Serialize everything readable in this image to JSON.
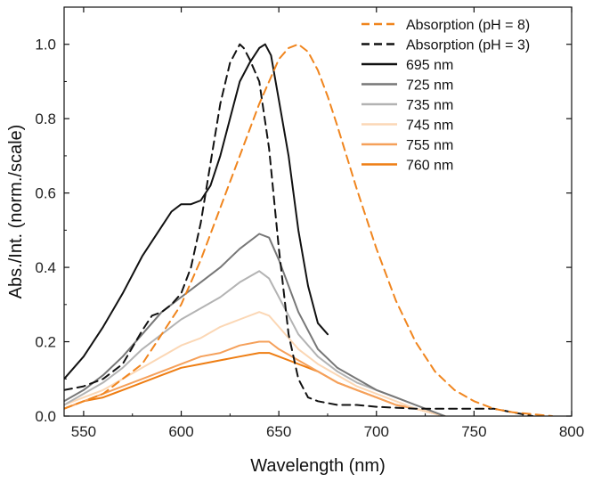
{
  "chart_data": {
    "type": "line",
    "title": "",
    "xlabel": "Wavelength (nm)",
    "ylabel": "Abs./Int. (norm./scale)",
    "xlim": [
      540,
      800
    ],
    "ylim": [
      0,
      1.1
    ],
    "x_ticks": [
      550,
      600,
      650,
      700,
      750,
      800
    ],
    "y_ticks": [
      0.0,
      0.2,
      0.4,
      0.6,
      0.8,
      1.0
    ],
    "x_tick_labels": [
      "550",
      "600",
      "650",
      "700",
      "750",
      "800"
    ],
    "y_tick_labels": [
      "0.0",
      "0.2",
      "0.4",
      "0.6",
      "0.8",
      "1.0"
    ],
    "grid": false,
    "legend_position": "top-right",
    "series": [
      {
        "name": "Absorption (pH = 8)",
        "color": "#f0851e",
        "dash": "dashed",
        "x": [
          540,
          560,
          580,
          600,
          610,
          620,
          630,
          640,
          645,
          650,
          655,
          660,
          665,
          670,
          675,
          680,
          690,
          700,
          710,
          720,
          730,
          740,
          750,
          760,
          770,
          780,
          790
        ],
        "y": [
          0.02,
          0.06,
          0.14,
          0.3,
          0.42,
          0.56,
          0.7,
          0.84,
          0.9,
          0.96,
          0.99,
          1.0,
          0.98,
          0.93,
          0.86,
          0.78,
          0.61,
          0.45,
          0.31,
          0.2,
          0.12,
          0.07,
          0.04,
          0.02,
          0.01,
          0.005,
          0.0
        ]
      },
      {
        "name": "Absorption (pH = 3)",
        "color": "#111111",
        "dash": "dashed",
        "x": [
          540,
          550,
          560,
          570,
          580,
          585,
          590,
          595,
          600,
          605,
          610,
          615,
          620,
          625,
          630,
          632,
          635,
          640,
          645,
          650,
          655,
          660,
          665,
          670,
          680,
          690,
          700,
          720,
          740,
          760,
          780
        ],
        "y": [
          0.07,
          0.08,
          0.1,
          0.14,
          0.23,
          0.27,
          0.28,
          0.3,
          0.33,
          0.4,
          0.52,
          0.68,
          0.84,
          0.95,
          1.0,
          0.99,
          0.96,
          0.9,
          0.72,
          0.45,
          0.22,
          0.1,
          0.05,
          0.04,
          0.03,
          0.03,
          0.025,
          0.02,
          0.02,
          0.02,
          0.0
        ]
      },
      {
        "name": "695 nm",
        "color": "#111111",
        "dash": "solid",
        "x": [
          540,
          550,
          560,
          570,
          580,
          590,
          595,
          600,
          605,
          610,
          615,
          620,
          625,
          630,
          635,
          640,
          643,
          646,
          650,
          655,
          660,
          665,
          670,
          675
        ],
        "y": [
          0.1,
          0.16,
          0.24,
          0.33,
          0.43,
          0.51,
          0.55,
          0.57,
          0.57,
          0.58,
          0.62,
          0.7,
          0.8,
          0.9,
          0.95,
          0.99,
          1.0,
          0.97,
          0.85,
          0.7,
          0.5,
          0.35,
          0.25,
          0.22
        ]
      },
      {
        "name": "725 nm",
        "color": "#777777",
        "dash": "solid",
        "x": [
          540,
          550,
          560,
          570,
          580,
          590,
          600,
          610,
          620,
          630,
          640,
          645,
          650,
          660,
          670,
          680,
          690,
          700,
          710,
          720,
          735
        ],
        "y": [
          0.04,
          0.07,
          0.11,
          0.16,
          0.22,
          0.28,
          0.32,
          0.36,
          0.4,
          0.45,
          0.49,
          0.48,
          0.42,
          0.28,
          0.18,
          0.13,
          0.1,
          0.07,
          0.05,
          0.03,
          0.0
        ]
      },
      {
        "name": "735 nm",
        "color": "#b3b3b3",
        "dash": "solid",
        "x": [
          540,
          550,
          560,
          570,
          580,
          590,
          600,
          610,
          620,
          630,
          640,
          645,
          650,
          660,
          670,
          680,
          690,
          700,
          710,
          720,
          735
        ],
        "y": [
          0.03,
          0.06,
          0.09,
          0.13,
          0.18,
          0.22,
          0.26,
          0.29,
          0.32,
          0.36,
          0.39,
          0.37,
          0.32,
          0.22,
          0.16,
          0.12,
          0.09,
          0.07,
          0.05,
          0.03,
          0.0
        ]
      },
      {
        "name": "745 nm",
        "color": "#fbd7b5",
        "dash": "solid",
        "x": [
          540,
          550,
          560,
          570,
          580,
          590,
          600,
          610,
          620,
          630,
          640,
          645,
          650,
          660,
          670,
          680,
          690,
          700,
          710,
          720,
          735
        ],
        "y": [
          0.03,
          0.05,
          0.07,
          0.1,
          0.13,
          0.16,
          0.19,
          0.21,
          0.24,
          0.26,
          0.28,
          0.27,
          0.24,
          0.18,
          0.14,
          0.11,
          0.08,
          0.06,
          0.04,
          0.02,
          0.0
        ]
      },
      {
        "name": "755 nm",
        "color": "#f5a05a",
        "dash": "solid",
        "x": [
          540,
          550,
          560,
          570,
          580,
          590,
          600,
          610,
          620,
          630,
          640,
          645,
          650,
          660,
          670,
          680,
          690,
          700,
          710,
          720,
          735
        ],
        "y": [
          0.02,
          0.04,
          0.06,
          0.08,
          0.1,
          0.12,
          0.14,
          0.16,
          0.17,
          0.19,
          0.2,
          0.2,
          0.18,
          0.15,
          0.12,
          0.09,
          0.07,
          0.05,
          0.03,
          0.02,
          0.0
        ]
      },
      {
        "name": "760 nm",
        "color": "#ee7d12",
        "dash": "solid",
        "x": [
          540,
          550,
          560,
          570,
          580,
          590,
          600,
          610,
          620,
          630,
          640,
          645,
          650,
          660,
          670,
          680,
          690,
          700,
          710,
          720,
          735
        ],
        "y": [
          0.02,
          0.04,
          0.05,
          0.07,
          0.09,
          0.11,
          0.13,
          0.14,
          0.15,
          0.16,
          0.17,
          0.17,
          0.16,
          0.14,
          0.12,
          0.09,
          0.07,
          0.05,
          0.03,
          0.02,
          0.0
        ]
      }
    ]
  }
}
